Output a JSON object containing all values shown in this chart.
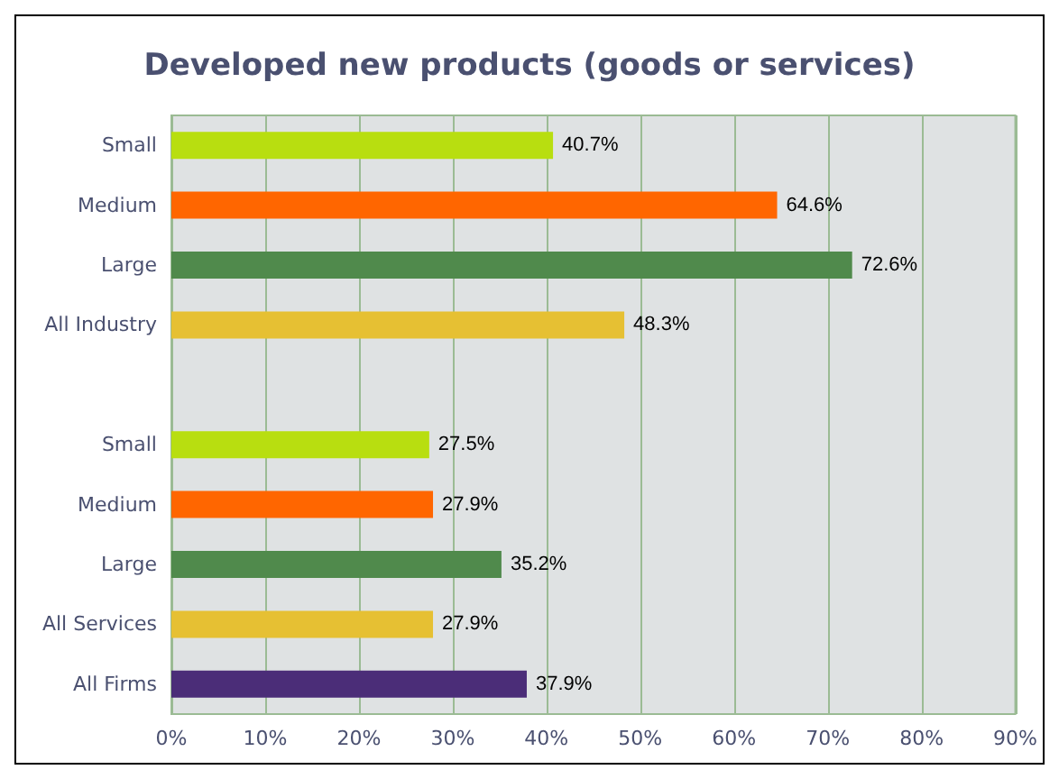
{
  "chart_data": {
    "type": "bar",
    "orientation": "horizontal",
    "title": "Developed new products (goods or services)",
    "categories": [
      "Small",
      "Medium",
      "Large",
      "All Industry",
      null,
      "Small",
      "Medium",
      "Large",
      "All Services",
      "All Firms"
    ],
    "values": [
      40.7,
      64.6,
      72.6,
      48.3,
      null,
      27.5,
      27.9,
      35.2,
      27.9,
      37.9
    ],
    "colors": [
      "#b8de10",
      "#ff6600",
      "#508a4c",
      "#e6c033",
      null,
      "#b8de10",
      "#ff6600",
      "#508a4c",
      "#e6c033",
      "#4b2d78"
    ],
    "value_labels": [
      "40.7%",
      "64.6%",
      "72.6%",
      "48.3%",
      null,
      "27.5%",
      "27.9%",
      "35.2%",
      "27.9%",
      "37.9%"
    ],
    "xlim": [
      0,
      90
    ],
    "xticks": [
      {
        "value": 0,
        "label": "0%"
      },
      {
        "value": 10,
        "label": "10%"
      },
      {
        "value": 20,
        "label": "20%"
      },
      {
        "value": 30,
        "label": "30%"
      },
      {
        "value": 40,
        "label": "40%"
      },
      {
        "value": 50,
        "label": "50%"
      },
      {
        "value": 60,
        "label": "60%"
      },
      {
        "value": 70,
        "label": "70%"
      },
      {
        "value": 80,
        "label": "80%"
      },
      {
        "value": 90,
        "label": "90%"
      }
    ],
    "grid": "x"
  }
}
